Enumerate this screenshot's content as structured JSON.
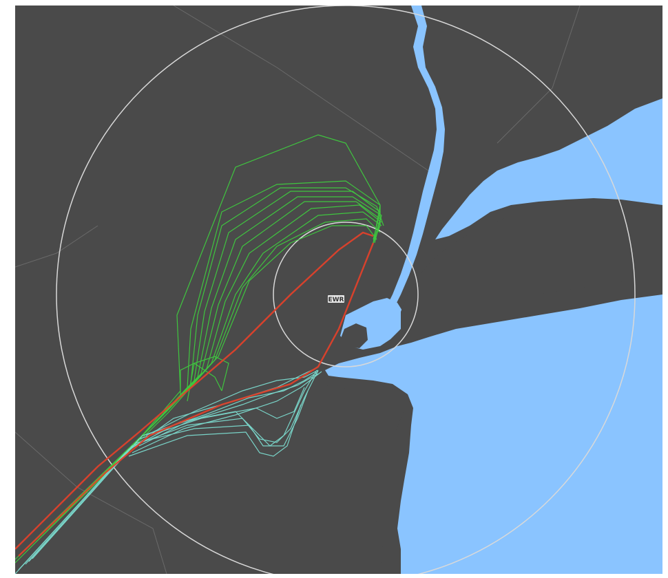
{
  "map": {
    "airport_code": "EWR",
    "colors": {
      "land": "#4a4a4a",
      "water": "#8ac4ff",
      "range_ring": "#d9d9d9",
      "border": "#6a6a6a",
      "track_green": "#3ed43e",
      "track_teal": "#7fe3d6",
      "track_red": "#e0412b",
      "airport_label_bg": "#e8e8e8",
      "airport_label_text": "#333333"
    },
    "track_groups": [
      {
        "id": "green-loops",
        "color_key": "track_green"
      },
      {
        "id": "teal-loops",
        "color_key": "track_teal"
      },
      {
        "id": "red-straight-in",
        "color_key": "track_red"
      }
    ]
  }
}
